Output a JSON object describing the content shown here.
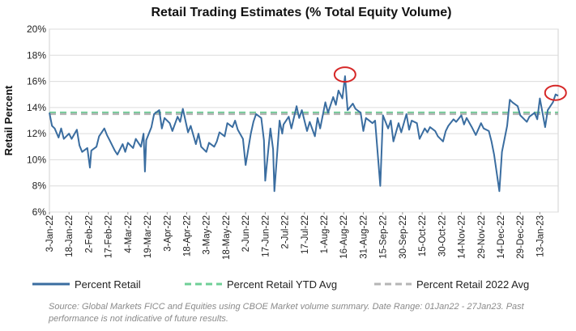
{
  "chart_data": {
    "type": "line",
    "title": "Retail Trading Estimates (% Total Equity Volume)",
    "ylabel": "Retail Percent",
    "xlabel": "",
    "ylim": [
      6,
      20
    ],
    "y_ticks": [
      "6%",
      "8%",
      "10%",
      "12%",
      "14%",
      "16%",
      "18%",
      "20%"
    ],
    "y_tick_values": [
      6,
      8,
      10,
      12,
      14,
      16,
      18,
      20
    ],
    "x_tick_labels": [
      "3-Jan-22",
      "18-Jan-22",
      "2-Feb-22",
      "17-Feb-22",
      "4-Mar-22",
      "19-Mar-22",
      "3-Apr-22",
      "18-Apr-22",
      "3-May-22",
      "18-May-22",
      "2-Jun-22",
      "17-Jun-22",
      "2-Jul-22",
      "17-Jul-22",
      "1-Aug-22",
      "16-Aug-22",
      "31-Aug-22",
      "15-Sep-22",
      "30-Sep-22",
      "15-Oct-22",
      "30-Oct-22",
      "14-Nov-22",
      "29-Nov-22",
      "14-Dec-22",
      "29-Dec-22",
      "13-Jan-23"
    ],
    "x_start": "2022-01-03",
    "x_end": "2023-01-27",
    "grid": "y",
    "legend_position": "bottom",
    "series": [
      {
        "name": "Percent Retail",
        "color": "#3a6da0",
        "style": "solid",
        "points": [
          [
            "2022-01-03",
            13.6
          ],
          [
            "2022-01-05",
            12.6
          ],
          [
            "2022-01-07",
            12.4
          ],
          [
            "2022-01-10",
            11.7
          ],
          [
            "2022-01-12",
            12.4
          ],
          [
            "2022-01-14",
            11.6
          ],
          [
            "2022-01-18",
            12.0
          ],
          [
            "2022-01-20",
            11.6
          ],
          [
            "2022-01-24",
            12.3
          ],
          [
            "2022-01-26",
            11.1
          ],
          [
            "2022-01-28",
            10.6
          ],
          [
            "2022-02-01",
            10.9
          ],
          [
            "2022-02-03",
            9.4
          ],
          [
            "2022-02-04",
            10.7
          ],
          [
            "2022-02-08",
            11.0
          ],
          [
            "2022-02-10",
            11.8
          ],
          [
            "2022-02-14",
            12.4
          ],
          [
            "2022-02-16",
            11.9
          ],
          [
            "2022-02-18",
            11.5
          ],
          [
            "2022-02-22",
            10.7
          ],
          [
            "2022-02-24",
            10.4
          ],
          [
            "2022-02-28",
            11.2
          ],
          [
            "2022-03-02",
            10.6
          ],
          [
            "2022-03-04",
            11.3
          ],
          [
            "2022-03-08",
            10.9
          ],
          [
            "2022-03-10",
            11.6
          ],
          [
            "2022-03-14",
            11.0
          ],
          [
            "2022-03-16",
            12.0
          ],
          [
            "2022-03-17",
            9.1
          ],
          [
            "2022-03-18",
            11.5
          ],
          [
            "2022-03-22",
            12.5
          ],
          [
            "2022-03-24",
            13.5
          ],
          [
            "2022-03-28",
            13.8
          ],
          [
            "2022-03-30",
            12.4
          ],
          [
            "2022-04-01",
            13.2
          ],
          [
            "2022-04-05",
            12.8
          ],
          [
            "2022-04-07",
            12.2
          ],
          [
            "2022-04-11",
            13.3
          ],
          [
            "2022-04-13",
            12.9
          ],
          [
            "2022-04-15",
            13.9
          ],
          [
            "2022-04-19",
            12.1
          ],
          [
            "2022-04-21",
            12.6
          ],
          [
            "2022-04-25",
            11.2
          ],
          [
            "2022-04-27",
            12.0
          ],
          [
            "2022-04-29",
            11.0
          ],
          [
            "2022-05-03",
            10.6
          ],
          [
            "2022-05-05",
            11.3
          ],
          [
            "2022-05-09",
            11.0
          ],
          [
            "2022-05-11",
            11.4
          ],
          [
            "2022-05-13",
            12.1
          ],
          [
            "2022-05-17",
            11.8
          ],
          [
            "2022-05-19",
            12.8
          ],
          [
            "2022-05-23",
            12.5
          ],
          [
            "2022-05-25",
            13.0
          ],
          [
            "2022-05-27",
            12.3
          ],
          [
            "2022-05-31",
            11.6
          ],
          [
            "2022-06-02",
            9.6
          ],
          [
            "2022-06-06",
            12.0
          ],
          [
            "2022-06-08",
            12.9
          ],
          [
            "2022-06-10",
            13.5
          ],
          [
            "2022-06-14",
            13.2
          ],
          [
            "2022-06-16",
            11.5
          ],
          [
            "2022-06-17",
            8.4
          ],
          [
            "2022-06-21",
            12.4
          ],
          [
            "2022-06-23",
            10.8
          ],
          [
            "2022-06-24",
            7.6
          ],
          [
            "2022-06-28",
            13.0
          ],
          [
            "2022-06-30",
            12.0
          ],
          [
            "2022-07-01",
            12.7
          ],
          [
            "2022-07-05",
            13.3
          ],
          [
            "2022-07-07",
            12.4
          ],
          [
            "2022-07-11",
            14.1
          ],
          [
            "2022-07-13",
            13.2
          ],
          [
            "2022-07-15",
            13.8
          ],
          [
            "2022-07-19",
            12.2
          ],
          [
            "2022-07-21",
            12.9
          ],
          [
            "2022-07-25",
            11.8
          ],
          [
            "2022-07-27",
            13.2
          ],
          [
            "2022-07-29",
            12.4
          ],
          [
            "2022-08-02",
            14.4
          ],
          [
            "2022-08-04",
            13.6
          ],
          [
            "2022-08-08",
            14.8
          ],
          [
            "2022-08-10",
            14.2
          ],
          [
            "2022-08-12",
            15.3
          ],
          [
            "2022-08-15",
            14.7
          ],
          [
            "2022-08-17",
            16.4
          ],
          [
            "2022-08-19",
            13.8
          ],
          [
            "2022-08-23",
            14.3
          ],
          [
            "2022-08-25",
            13.9
          ],
          [
            "2022-08-29",
            13.6
          ],
          [
            "2022-08-31",
            12.2
          ],
          [
            "2022-09-02",
            13.2
          ],
          [
            "2022-09-07",
            12.8
          ],
          [
            "2022-09-09",
            13.0
          ],
          [
            "2022-09-13",
            8.0
          ],
          [
            "2022-09-15",
            13.4
          ],
          [
            "2022-09-19",
            12.4
          ],
          [
            "2022-09-21",
            13.0
          ],
          [
            "2022-09-23",
            11.4
          ],
          [
            "2022-09-27",
            12.8
          ],
          [
            "2022-09-29",
            12.1
          ],
          [
            "2022-10-03",
            13.5
          ],
          [
            "2022-10-05",
            12.3
          ],
          [
            "2022-10-07",
            13.0
          ],
          [
            "2022-10-11",
            12.8
          ],
          [
            "2022-10-13",
            11.6
          ],
          [
            "2022-10-17",
            12.4
          ],
          [
            "2022-10-19",
            12.1
          ],
          [
            "2022-10-21",
            12.5
          ],
          [
            "2022-10-25",
            12.2
          ],
          [
            "2022-10-27",
            11.8
          ],
          [
            "2022-10-31",
            11.4
          ],
          [
            "2022-11-02",
            12.2
          ],
          [
            "2022-11-04",
            12.6
          ],
          [
            "2022-11-08",
            13.1
          ],
          [
            "2022-11-10",
            12.9
          ],
          [
            "2022-11-14",
            13.4
          ],
          [
            "2022-11-16",
            12.7
          ],
          [
            "2022-11-18",
            13.2
          ],
          [
            "2022-11-22",
            12.5
          ],
          [
            "2022-11-25",
            11.9
          ],
          [
            "2022-11-29",
            12.8
          ],
          [
            "2022-12-01",
            12.4
          ],
          [
            "2022-12-05",
            12.2
          ],
          [
            "2022-12-07",
            11.4
          ],
          [
            "2022-12-09",
            10.4
          ],
          [
            "2022-12-13",
            7.6
          ],
          [
            "2022-12-15",
            10.6
          ],
          [
            "2022-12-19",
            12.6
          ],
          [
            "2022-12-21",
            14.6
          ],
          [
            "2022-12-23",
            14.4
          ],
          [
            "2022-12-27",
            14.1
          ],
          [
            "2022-12-29",
            13.4
          ],
          [
            "2023-01-03",
            12.9
          ],
          [
            "2023-01-05",
            13.3
          ],
          [
            "2023-01-09",
            13.6
          ],
          [
            "2023-01-11",
            13.1
          ],
          [
            "2023-01-13",
            14.7
          ],
          [
            "2023-01-17",
            12.5
          ],
          [
            "2023-01-19",
            13.8
          ],
          [
            "2023-01-23",
            14.4
          ],
          [
            "2023-01-25",
            15.0
          ],
          [
            "2023-01-27",
            14.9
          ]
        ]
      },
      {
        "name": "Percent Retail YTD Avg",
        "color": "#6fcf97",
        "style": "dashed",
        "value": 13.6
      },
      {
        "name": "Percent Retail 2022 Avg",
        "color": "#b5b5b5",
        "style": "dashed",
        "value": 13.5
      }
    ],
    "highlight_color": "#d62828",
    "highlights": [
      {
        "x": "2022-08-17",
        "y": 16.4
      },
      {
        "x": "2023-01-25",
        "y": 15.0
      }
    ]
  },
  "footnote": "Source: Global Markets FICC and Equities using CBOE Market volume summary. Date Range: 01Jan22 - 27Jan23. Past performance is not indicative of future results."
}
